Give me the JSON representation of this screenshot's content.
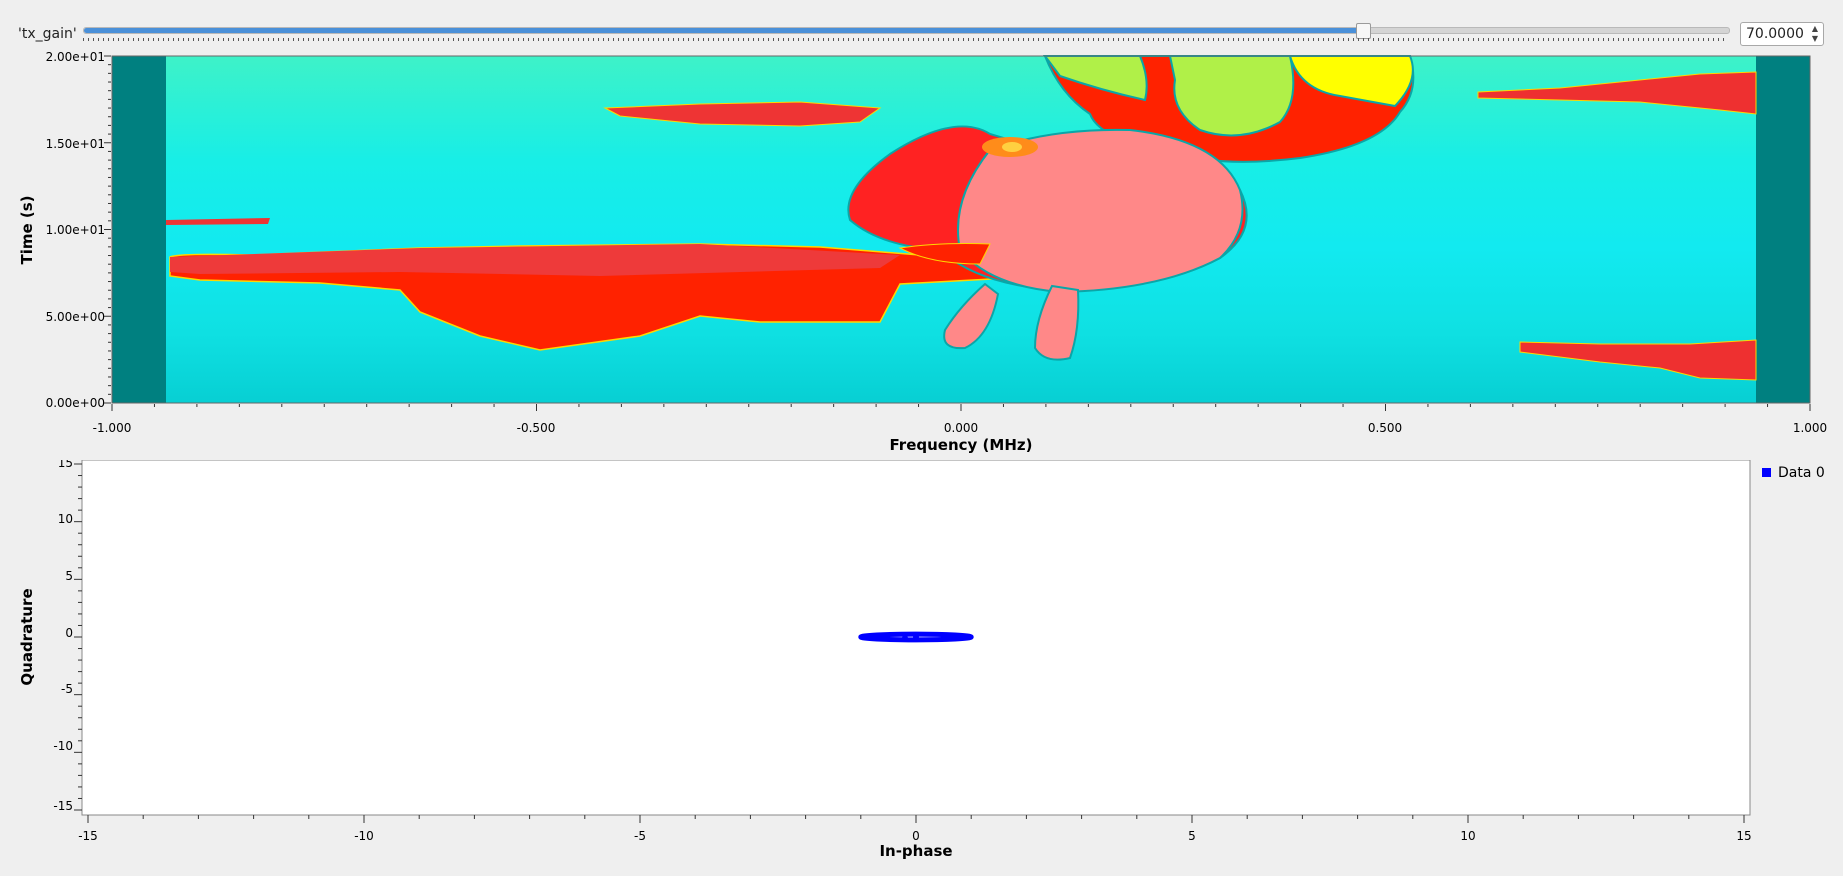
{
  "slider": {
    "label": "'tx_gain'",
    "value": 70,
    "min": 0,
    "max": 90,
    "display_value": "70.0000"
  },
  "waterfall": {
    "chart_data": {
      "type": "heatmap",
      "xlabel": "Frequency (MHz)",
      "ylabel": "Time (s)",
      "xlim": [
        -1.0,
        1.0
      ],
      "ylim": [
        0,
        20
      ],
      "x_ticks": [
        "-1.000",
        "-0.500",
        "0.000",
        "0.500",
        "1.000"
      ],
      "y_ticks": [
        "0.00e+00",
        "5.00e+00",
        "1.00e+01",
        "1.50e+01",
        "2.00e+01"
      ]
    }
  },
  "constellation": {
    "chart_data": {
      "type": "scatter",
      "xlabel": "In-phase",
      "ylabel": "Quadrature",
      "xlim": [
        -15,
        15
      ],
      "ylim": [
        -15,
        15
      ],
      "x_ticks": [
        "-15",
        "-10",
        "-5",
        "0",
        "5",
        "10",
        "15"
      ],
      "y_ticks": [
        "-15",
        "-10",
        "-5",
        "0",
        "5",
        "10",
        "15"
      ],
      "legend": "top-right",
      "series": [
        {
          "name": "Data 0",
          "color": "#0000ff",
          "ellipse_center": [
            0,
            0
          ],
          "ellipse_radius": [
            1.0,
            0.25
          ],
          "x": [
            0.0,
            0.6,
            -0.2,
            0.8
          ],
          "y": [
            0.0,
            0.0,
            -0.1,
            0.05
          ]
        }
      ]
    }
  }
}
